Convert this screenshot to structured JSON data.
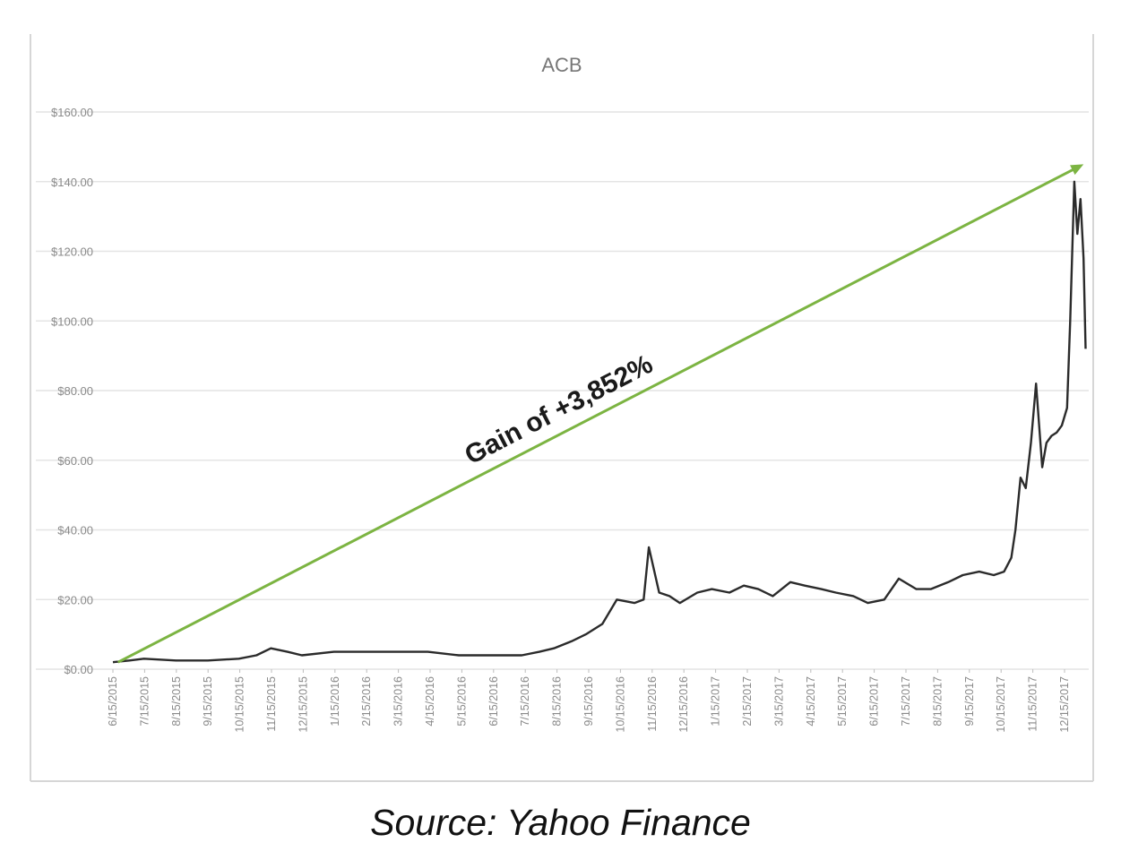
{
  "caption": "Source: Yahoo Finance",
  "colors": {
    "price_line": "#2b2b2b",
    "trend_arrow": "#7cb442",
    "grid": "#e4e4e4",
    "tick_text": "#8a8a8a",
    "title_text": "#777777"
  },
  "chart_data": {
    "type": "line",
    "title": "ACB",
    "annotation": "Gain of +3,852%",
    "ylim": [
      0,
      160
    ],
    "y_ticks": [
      "$0.00",
      "$20.00",
      "$40.00",
      "$60.00",
      "$80.00",
      "$100.00",
      "$120.00",
      "$140.00",
      "$160.00"
    ],
    "y_tick_values": [
      0,
      20,
      40,
      60,
      80,
      100,
      120,
      140,
      160
    ],
    "x_ticks": [
      "6/15/2015",
      "7/15/2015",
      "8/15/2015",
      "9/15/2015",
      "10/15/2015",
      "11/15/2015",
      "12/15/2015",
      "1/15/2016",
      "2/15/2016",
      "3/15/2016",
      "4/15/2016",
      "5/15/2016",
      "6/15/2016",
      "7/15/2016",
      "8/15/2016",
      "9/15/2016",
      "10/15/2016",
      "11/15/2016",
      "12/15/2016",
      "1/15/2017",
      "2/15/2017",
      "3/15/2017",
      "4/15/2017",
      "5/15/2017",
      "6/15/2017",
      "7/15/2017",
      "8/15/2017",
      "9/15/2017",
      "10/15/2017",
      "11/15/2017",
      "12/15/2017"
    ],
    "grid": true,
    "series": [
      {
        "x": [
          "2015-06-15",
          "2015-07-01",
          "2015-07-15",
          "2015-08-15",
          "2015-09-15",
          "2015-10-15",
          "2015-11-01",
          "2015-11-15",
          "2015-12-01",
          "2015-12-15",
          "2016-01-15",
          "2016-02-15",
          "2016-03-15",
          "2016-04-15",
          "2016-05-15",
          "2016-06-15",
          "2016-07-15",
          "2016-08-01",
          "2016-08-15",
          "2016-09-01",
          "2016-09-15",
          "2016-10-01",
          "2016-10-15",
          "2016-11-01",
          "2016-11-10",
          "2016-11-15",
          "2016-11-25",
          "2016-12-05",
          "2016-12-15",
          "2017-01-01",
          "2017-01-15",
          "2017-02-01",
          "2017-02-15",
          "2017-03-01",
          "2017-03-15",
          "2017-04-01",
          "2017-04-15",
          "2017-05-01",
          "2017-05-15",
          "2017-06-01",
          "2017-06-15",
          "2017-07-01",
          "2017-07-15",
          "2017-08-01",
          "2017-08-15",
          "2017-09-01",
          "2017-09-15",
          "2017-10-01",
          "2017-10-15",
          "2017-10-25",
          "2017-11-01",
          "2017-11-05",
          "2017-11-10",
          "2017-11-15",
          "2017-11-20",
          "2017-11-25",
          "2017-12-01",
          "2017-12-05",
          "2017-12-10",
          "2017-12-15",
          "2017-12-20",
          "2017-12-25",
          "2017-12-28",
          "2018-01-01",
          "2018-01-04",
          "2018-01-07",
          "2018-01-10",
          "2018-01-12"
        ],
        "values": [
          2,
          2.5,
          3,
          2.5,
          2.5,
          3,
          4,
          6,
          5,
          4,
          5,
          5,
          5,
          5,
          4,
          4,
          4,
          5,
          6,
          8,
          10,
          13,
          20,
          19,
          20,
          35,
          22,
          21,
          19,
          22,
          23,
          22,
          24,
          23,
          21,
          25,
          24,
          23,
          22,
          21,
          19,
          20,
          26,
          23,
          23,
          25,
          27,
          28,
          27,
          28,
          32,
          40,
          55,
          52,
          65,
          82,
          58,
          65,
          67,
          68,
          70,
          75,
          100,
          140,
          125,
          135,
          118,
          92
        ]
      }
    ],
    "trend_line": {
      "start": {
        "x": "2015-06-20",
        "y": 2
      },
      "end": {
        "x": "2018-01-10",
        "y": 145
      }
    }
  }
}
